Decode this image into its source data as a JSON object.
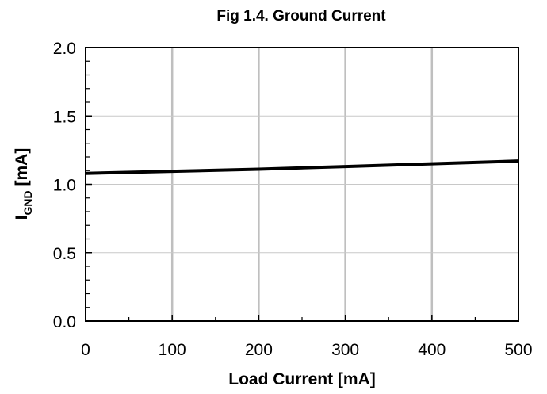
{
  "chart_data": {
    "type": "line",
    "title": "Fig 1.4. Ground Current",
    "xlabel": "Load Current [mA]",
    "ylabel_main": "I",
    "ylabel_sub": "GND",
    "ylabel_unit": " [mA]",
    "xlim": [
      0,
      500
    ],
    "ylim": [
      0,
      2.0
    ],
    "x_ticks": [
      0,
      100,
      200,
      300,
      400,
      500
    ],
    "x_tick_labels": [
      "0",
      "100",
      "200",
      "300",
      "400",
      "500"
    ],
    "y_ticks": [
      0,
      0.5,
      1.0,
      1.5,
      2.0
    ],
    "y_tick_labels": [
      "0.0",
      "0.5",
      "1.0",
      "1.5",
      "2.0"
    ],
    "grid": true,
    "legend": false,
    "series": [
      {
        "color": "#000000",
        "x": [
          0,
          100,
          200,
          300,
          400,
          500
        ],
        "y": [
          1.08,
          1.095,
          1.11,
          1.13,
          1.15,
          1.17
        ]
      }
    ]
  }
}
